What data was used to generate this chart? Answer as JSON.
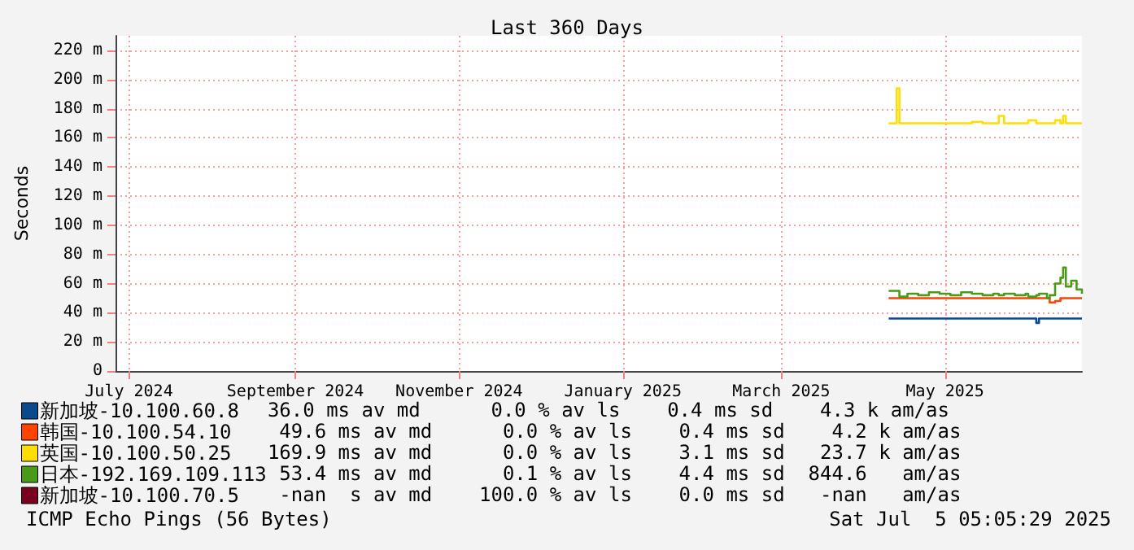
{
  "chart_data": {
    "type": "step",
    "title": "Last 360 Days",
    "ylabel": "Seconds",
    "x": [
      "2025-04-24",
      "2025-04-27",
      "2025-04-28",
      "2025-05-01",
      "2025-05-05",
      "2025-05-09",
      "2025-05-13",
      "2025-05-17",
      "2025-05-21",
      "2025-05-25",
      "2025-05-29",
      "2025-06-02",
      "2025-06-04",
      "2025-06-06",
      "2025-06-10",
      "2025-06-14",
      "2025-06-15",
      "2025-06-18",
      "2025-06-19",
      "2025-06-22",
      "2025-06-23",
      "2025-06-25",
      "2025-06-27",
      "2025-06-28",
      "2025-06-29",
      "2025-07-01",
      "2025-07-03",
      "2025-07-05"
    ],
    "series": [
      {
        "name": "新加坡-10.100.60.8",
        "color": "#0a4a8a",
        "values": [
          36,
          36,
          36,
          36,
          36,
          36,
          36,
          36,
          36,
          36,
          36,
          36,
          36,
          36,
          36,
          36,
          36,
          33,
          36,
          36,
          36,
          36,
          36,
          36,
          36,
          36,
          36,
          36
        ]
      },
      {
        "name": "韩国-10.100.54.10",
        "color": "#ff4400",
        "values": [
          50,
          50,
          50,
          50,
          50,
          50,
          50,
          50,
          50,
          50,
          50,
          50,
          50,
          50,
          50,
          50,
          50,
          50,
          50,
          50,
          47,
          48,
          50,
          50,
          50,
          50,
          50,
          50
        ]
      },
      {
        "name": "英国-10.100.50.25",
        "color": "#ffdd00",
        "values": [
          170,
          194,
          170,
          170,
          170,
          170,
          170,
          170,
          170,
          171,
          170,
          170,
          175,
          170,
          170,
          170,
          172,
          170,
          170,
          170,
          170,
          172,
          170,
          175,
          170,
          170,
          170,
          170
        ]
      },
      {
        "name": "日本-192.169.109.113",
        "color": "#4a9a1a",
        "values": [
          55,
          55,
          51,
          53,
          52,
          54,
          53,
          52,
          54,
          53,
          52,
          53,
          52,
          53,
          52,
          53,
          51,
          52,
          53,
          50,
          52,
          60,
          64,
          71,
          58,
          62,
          56,
          53
        ]
      },
      {
        "name": "新加坡-10.100.70.5",
        "color": "#7a0020",
        "values": [
          null,
          null,
          null,
          null,
          null,
          null,
          null,
          null,
          null,
          null,
          null,
          null,
          null,
          null,
          null,
          null,
          null,
          null,
          null,
          null,
          null,
          null,
          null,
          null,
          null,
          null,
          null,
          null
        ]
      }
    ],
    "xlim": [
      "2024-07-10",
      "2025-07-05"
    ],
    "xticks": [
      {
        "value": "2024-07-15",
        "label": "July 2024"
      },
      {
        "value": "2024-09-15",
        "label": "September 2024"
      },
      {
        "value": "2024-11-15",
        "label": "November 2024"
      },
      {
        "value": "2025-01-15",
        "label": "January 2025"
      },
      {
        "value": "2025-03-15",
        "label": "March 2025"
      },
      {
        "value": "2025-05-15",
        "label": "May 2025"
      }
    ],
    "ylim": [
      0,
      230
    ],
    "yticks": [
      {
        "value": 0,
        "label": "0"
      },
      {
        "value": 20,
        "label": "20 m"
      },
      {
        "value": 40,
        "label": "40 m"
      },
      {
        "value": 60,
        "label": "60 m"
      },
      {
        "value": 80,
        "label": "80 m"
      },
      {
        "value": 100,
        "label": "100 m"
      },
      {
        "value": 120,
        "label": "120 m"
      },
      {
        "value": 140,
        "label": "140 m"
      },
      {
        "value": 160,
        "label": "160 m"
      },
      {
        "value": 180,
        "label": "180 m"
      },
      {
        "value": 200,
        "label": "200 m"
      },
      {
        "value": 220,
        "label": "220 m"
      }
    ],
    "grid": true,
    "legend": "bottom left",
    "line_style": "solid",
    "annotations": [
      "  36.0 ms av md      0.0 % av ls    0.4 ms sd    4.3 k am/as",
      "   49.6 ms av md      0.0 % av ls    0.4 ms sd    4.2 k am/as",
      "  169.9 ms av md      0.0 % av ls    3.1 ms sd   23.7 k am/as",
      "   53.4 ms av md      0.1 % av ls    4.4 ms sd  844.6   am/as",
      "   -nan  s av md    100.0 % av ls    0.0 ms sd   -nan   am/as",
      "ICMP Echo Pings (56 Bytes)",
      "Sat Jul  5 05:05:29 2025"
    ]
  }
}
